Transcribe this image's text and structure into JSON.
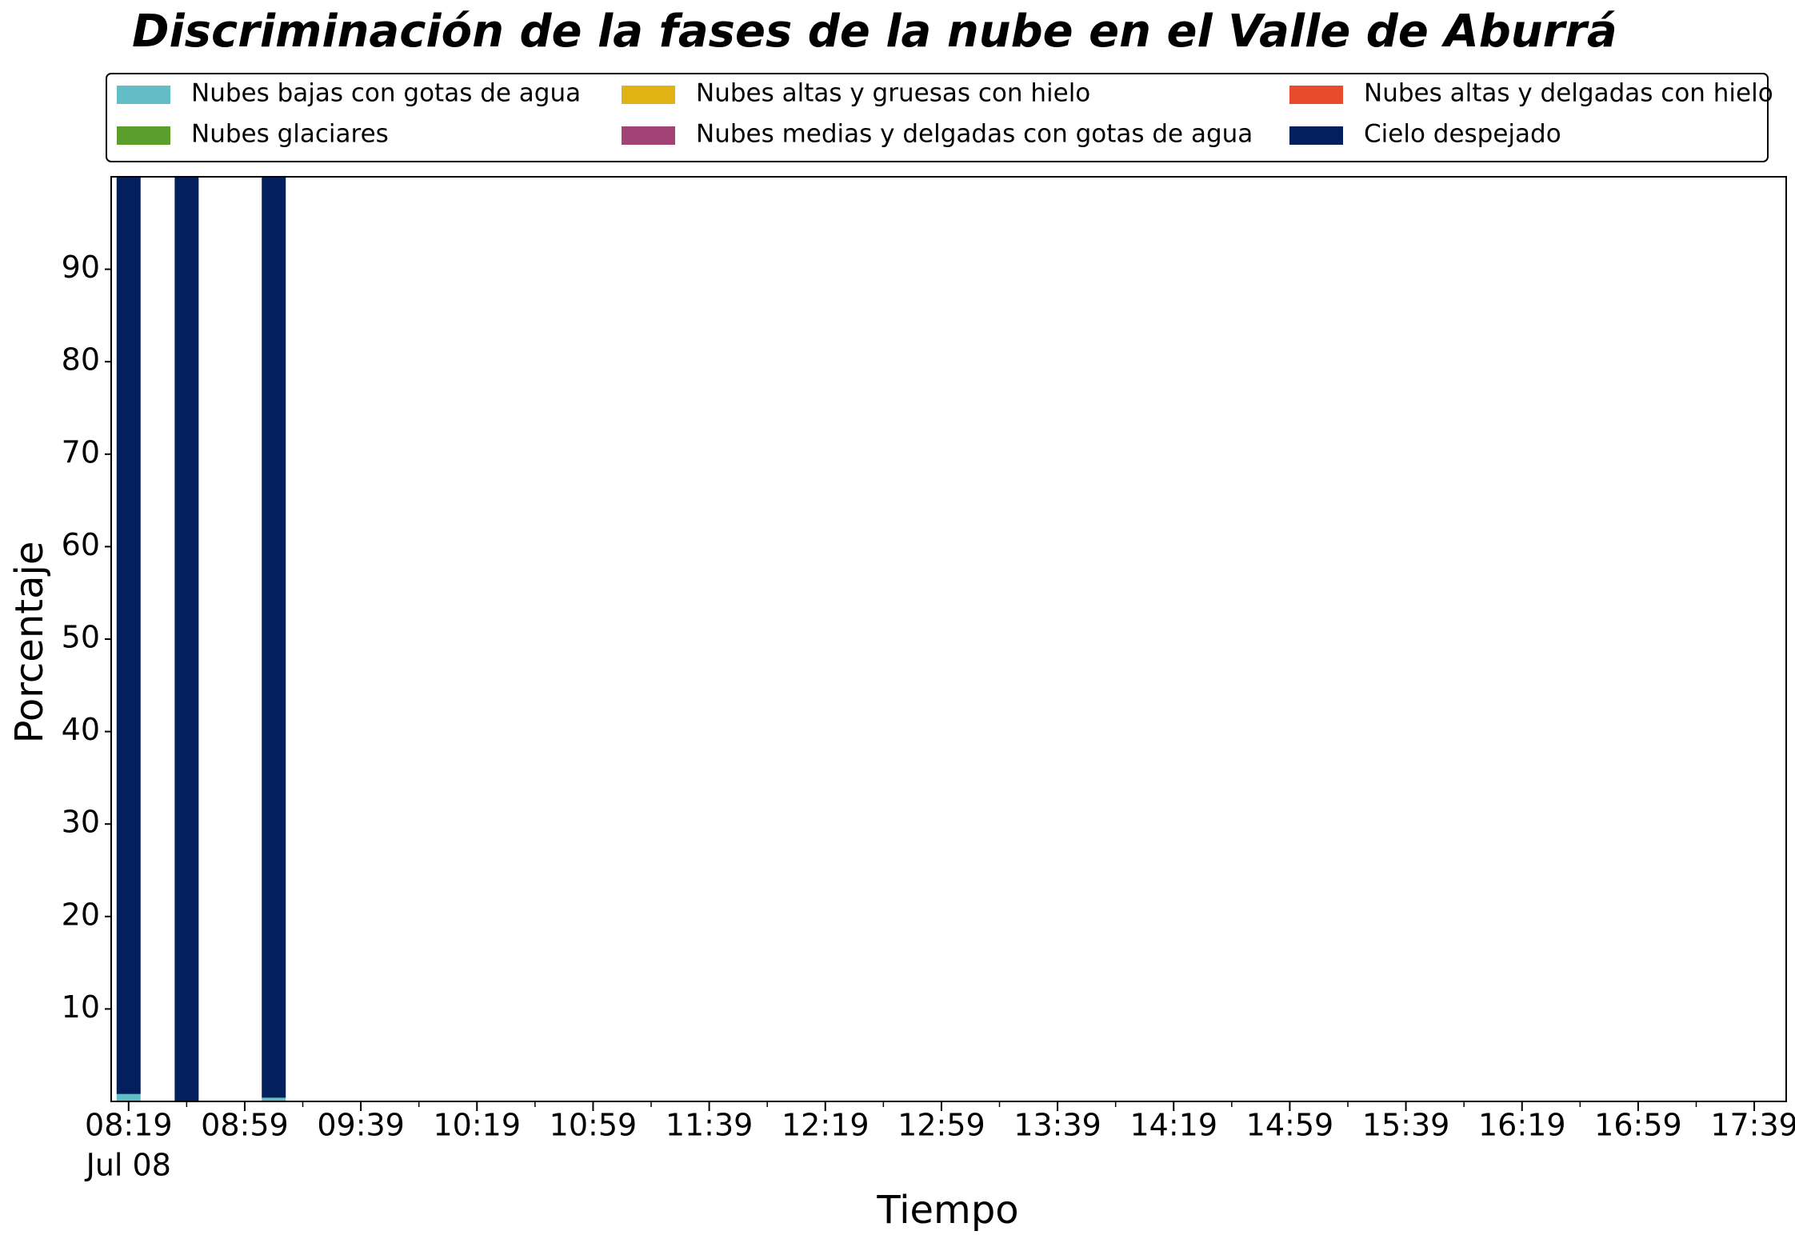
{
  "chart_data": {
    "type": "bar",
    "stacked": true,
    "title": "Discriminación de la fases de la nube en el Valle de Aburrá",
    "x_label": "Tiempo",
    "y_label": "Porcentaje",
    "x": [
      "08:19",
      "08:39",
      "09:09"
    ],
    "date_label": "Jul 08",
    "xlim": [
      "08:13",
      "17:50"
    ],
    "xticks": [
      "08:19",
      "08:59",
      "09:39",
      "10:19",
      "10:59",
      "11:39",
      "12:19",
      "12:59",
      "13:39",
      "14:19",
      "14:59",
      "15:39",
      "16:19",
      "16:59",
      "17:39"
    ],
    "ylim": [
      0,
      100
    ],
    "yticks": [
      10,
      20,
      30,
      40,
      50,
      60,
      70,
      80,
      90
    ],
    "series": [
      {
        "name": "Nubes bajas con gotas de agua",
        "color": "#63bdc6",
        "values": [
          0.8,
          0,
          0.4
        ]
      },
      {
        "name": "Nubes glaciares",
        "color": "#5c9e2c",
        "values": [
          0,
          0,
          0
        ]
      },
      {
        "name": "Nubes altas y gruesas con hielo",
        "color": "#e0b214",
        "values": [
          0,
          0,
          0
        ]
      },
      {
        "name": "Nubes medias y delgadas con gotas de agua",
        "color": "#a34274",
        "values": [
          0,
          0,
          0
        ]
      },
      {
        "name": "Nubes altas y delgadas con hielo",
        "color": "#e94b2a",
        "values": [
          0,
          0,
          0
        ]
      },
      {
        "name": "Cielo despejado",
        "color": "#03205c",
        "values": [
          99.2,
          100,
          99.6
        ]
      }
    ]
  }
}
